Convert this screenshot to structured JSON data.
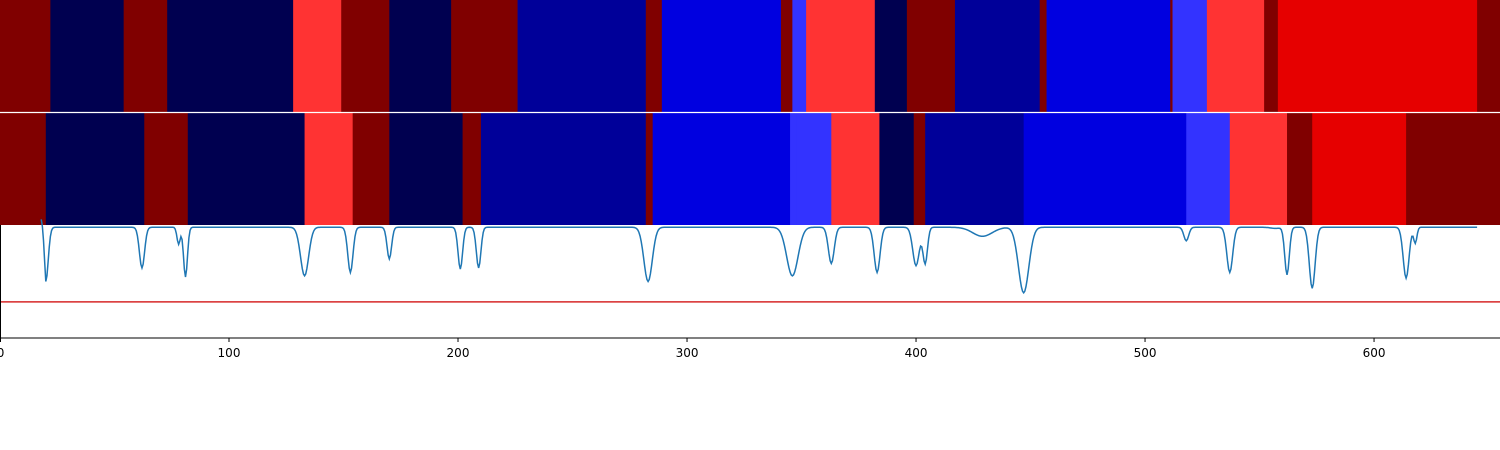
{
  "chart_data": {
    "type": "heatmap",
    "title": "",
    "xlabel": "",
    "ylabel": "",
    "xlim": [
      0,
      655
    ],
    "xticks": [
      0,
      100,
      200,
      300,
      400,
      500,
      600
    ],
    "grid": false,
    "legend": "none",
    "colors": {
      "dark_red": "#800000",
      "navy": "#000050",
      "dark_blue": "#000099",
      "blue": "#0000e0",
      "light_blue": "#3333ff",
      "light_red": "#ff3333",
      "red": "#e60000",
      "line": "#1f77b4",
      "threshold": "#d62728"
    },
    "rows": [
      {
        "segments": [
          {
            "start": 0,
            "end": 22,
            "color": "dark_red"
          },
          {
            "start": 22,
            "end": 54,
            "color": "navy"
          },
          {
            "start": 54,
            "end": 73,
            "color": "dark_red"
          },
          {
            "start": 73,
            "end": 128,
            "color": "navy"
          },
          {
            "start": 128,
            "end": 149,
            "color": "light_red"
          },
          {
            "start": 149,
            "end": 170,
            "color": "dark_red"
          },
          {
            "start": 170,
            "end": 197,
            "color": "navy"
          },
          {
            "start": 197,
            "end": 226,
            "color": "dark_red"
          },
          {
            "start": 226,
            "end": 282,
            "color": "dark_blue"
          },
          {
            "start": 282,
            "end": 289,
            "color": "dark_red"
          },
          {
            "start": 289,
            "end": 341,
            "color": "blue"
          },
          {
            "start": 341,
            "end": 346,
            "color": "dark_red"
          },
          {
            "start": 346,
            "end": 352,
            "color": "light_blue"
          },
          {
            "start": 352,
            "end": 382,
            "color": "light_red"
          },
          {
            "start": 382,
            "end": 396,
            "color": "navy"
          },
          {
            "start": 396,
            "end": 417,
            "color": "dark_red"
          },
          {
            "start": 417,
            "end": 454,
            "color": "dark_blue"
          },
          {
            "start": 454,
            "end": 457,
            "color": "dark_red"
          },
          {
            "start": 457,
            "end": 511,
            "color": "blue"
          },
          {
            "start": 511,
            "end": 512,
            "color": "dark_red"
          },
          {
            "start": 512,
            "end": 527,
            "color": "light_blue"
          },
          {
            "start": 527,
            "end": 552,
            "color": "light_red"
          },
          {
            "start": 552,
            "end": 558,
            "color": "dark_red"
          },
          {
            "start": 558,
            "end": 645,
            "color": "red"
          },
          {
            "start": 645,
            "end": 655,
            "color": "dark_red"
          }
        ]
      },
      {
        "segments": [
          {
            "start": 0,
            "end": 20,
            "color": "dark_red"
          },
          {
            "start": 20,
            "end": 63,
            "color": "navy"
          },
          {
            "start": 63,
            "end": 82,
            "color": "dark_red"
          },
          {
            "start": 82,
            "end": 133,
            "color": "navy"
          },
          {
            "start": 133,
            "end": 154,
            "color": "light_red"
          },
          {
            "start": 154,
            "end": 170,
            "color": "dark_red"
          },
          {
            "start": 170,
            "end": 202,
            "color": "navy"
          },
          {
            "start": 202,
            "end": 210,
            "color": "dark_red"
          },
          {
            "start": 210,
            "end": 282,
            "color": "dark_blue"
          },
          {
            "start": 282,
            "end": 285,
            "color": "dark_red"
          },
          {
            "start": 285,
            "end": 345,
            "color": "blue"
          },
          {
            "start": 345,
            "end": 348,
            "color": "light_blue"
          },
          {
            "start": 348,
            "end": 363,
            "color": "light_blue"
          },
          {
            "start": 363,
            "end": 384,
            "color": "light_red"
          },
          {
            "start": 384,
            "end": 399,
            "color": "navy"
          },
          {
            "start": 399,
            "end": 404,
            "color": "dark_red"
          },
          {
            "start": 404,
            "end": 447,
            "color": "dark_blue"
          },
          {
            "start": 447,
            "end": 518,
            "color": "blue"
          },
          {
            "start": 518,
            "end": 537,
            "color": "light_blue"
          },
          {
            "start": 537,
            "end": 562,
            "color": "light_red"
          },
          {
            "start": 562,
            "end": 573,
            "color": "dark_red"
          },
          {
            "start": 573,
            "end": 614,
            "color": "red"
          },
          {
            "start": 614,
            "end": 655,
            "color": "dark_red"
          }
        ]
      }
    ],
    "line_panel": {
      "ylim": [
        0,
        1
      ],
      "threshold": 0.32,
      "baseline": 0.98,
      "dips": [
        {
          "x": 20,
          "y": 0.5,
          "w": 1.5
        },
        {
          "x": 62,
          "y": 0.62,
          "w": 1.6
        },
        {
          "x": 78,
          "y": 0.83,
          "w": 1.0
        },
        {
          "x": 81,
          "y": 0.54,
          "w": 1.2
        },
        {
          "x": 133,
          "y": 0.55,
          "w": 2.5
        },
        {
          "x": 153,
          "y": 0.58,
          "w": 1.6
        },
        {
          "x": 170,
          "y": 0.7,
          "w": 1.4
        },
        {
          "x": 201,
          "y": 0.61,
          "w": 1.4
        },
        {
          "x": 209,
          "y": 0.62,
          "w": 1.4
        },
        {
          "x": 283,
          "y": 0.5,
          "w": 2.6
        },
        {
          "x": 346,
          "y": 0.55,
          "w": 3.5
        },
        {
          "x": 363,
          "y": 0.66,
          "w": 1.8
        },
        {
          "x": 383,
          "y": 0.58,
          "w": 1.8
        },
        {
          "x": 400,
          "y": 0.64,
          "w": 2.0
        },
        {
          "x": 404,
          "y": 0.66,
          "w": 1.4
        },
        {
          "x": 429,
          "y": 0.9,
          "w": 6.0
        },
        {
          "x": 447,
          "y": 0.4,
          "w": 3.2
        },
        {
          "x": 518,
          "y": 0.86,
          "w": 1.5
        },
        {
          "x": 537,
          "y": 0.58,
          "w": 1.8
        },
        {
          "x": 557,
          "y": 0.97,
          "w": 3.0
        },
        {
          "x": 562,
          "y": 0.56,
          "w": 1.4
        },
        {
          "x": 573,
          "y": 0.44,
          "w": 1.8
        },
        {
          "x": 614,
          "y": 0.53,
          "w": 1.8
        },
        {
          "x": 618,
          "y": 0.84,
          "w": 1.0
        }
      ]
    }
  }
}
